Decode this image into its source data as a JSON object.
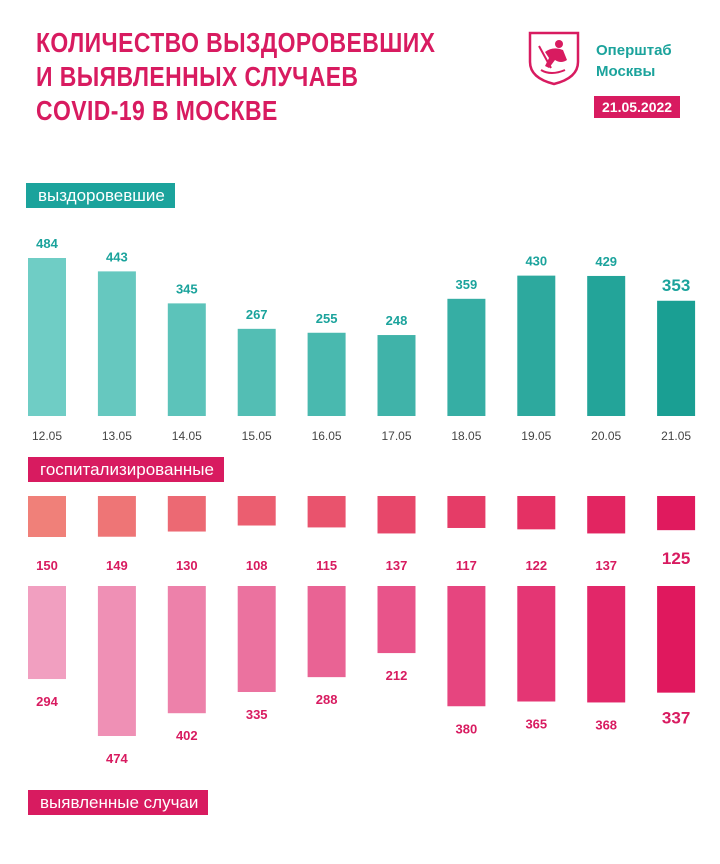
{
  "title_lines": [
    "КОЛИЧЕСТВО ВЫЗДОРОВЕВШИХ",
    "И ВЫЯВЛЕННЫХ СЛУЧАЕВ",
    "COVID-19 В МОСКВЕ"
  ],
  "org": [
    "Оперштаб",
    "Москвы"
  ],
  "date": "21.05.2022",
  "labels": {
    "recovered": "выздоровевшие",
    "hospitalized": "госпитализированные",
    "cases": "выявленные случаи"
  },
  "colors": {
    "brand_pink": "#d81b60",
    "brand_teal": "#1ba39c",
    "teal_light": "#6fcdc5",
    "teal_dark": "#1a9f93",
    "hosp_light": "#f08079",
    "hosp_dark": "#e01a5e",
    "cases_light": "#f19fc0",
    "cases_dark": "#e0185e"
  },
  "chart_data": {
    "type": "bar",
    "title": "Количество выздоровевших и выявленных случаев COVID-19 в Москве",
    "categories": [
      "12.05",
      "13.05",
      "14.05",
      "15.05",
      "16.05",
      "17.05",
      "18.05",
      "19.05",
      "20.05",
      "21.05"
    ],
    "series": [
      {
        "name": "выздоровевшие",
        "values": [
          484,
          443,
          345,
          267,
          255,
          248,
          359,
          430,
          429,
          353
        ]
      },
      {
        "name": "госпитализированные",
        "values": [
          150,
          149,
          130,
          108,
          115,
          137,
          117,
          122,
          137,
          125
        ]
      },
      {
        "name": "выявленные случаи",
        "values": [
          294,
          474,
          402,
          335,
          288,
          212,
          380,
          365,
          368,
          337
        ]
      }
    ]
  }
}
